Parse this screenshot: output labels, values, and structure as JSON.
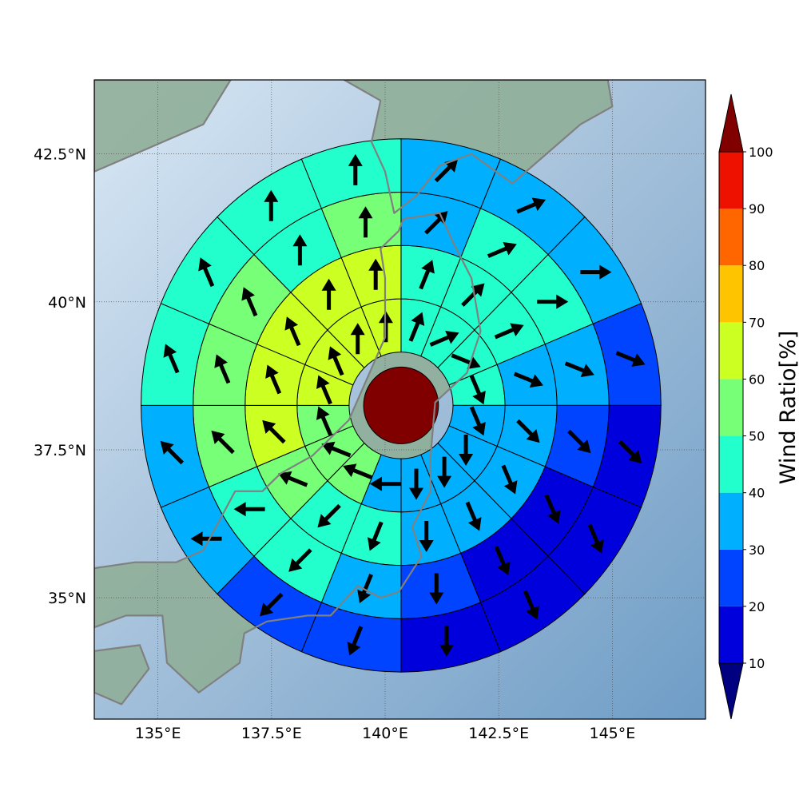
{
  "map": {
    "lon_range": [
      133.6,
      147.05
    ],
    "lat_range": [
      32.95,
      43.75
    ],
    "lon_ticks": [
      {
        "value": 135,
        "label": "135°E"
      },
      {
        "value": 137.5,
        "label": "137.5°E"
      },
      {
        "value": 140,
        "label": "140°E"
      },
      {
        "value": 142.5,
        "label": "142.5°E"
      },
      {
        "value": 145,
        "label": "145°E"
      }
    ],
    "lat_ticks": [
      {
        "value": 35,
        "label": "35°N"
      },
      {
        "value": 37.5,
        "label": "37.5°N"
      },
      {
        "value": 40,
        "label": "40°N"
      },
      {
        "value": 42.5,
        "label": "42.5°N"
      }
    ],
    "center": {
      "lon": 140.35,
      "lat": 38.25
    },
    "ring_radii_km": [
      0,
      100,
      200,
      300,
      400,
      500
    ],
    "sectors": 16,
    "center_value": 100,
    "ocean_color": "#a9c3dc",
    "land_color": "#8fae98",
    "coast_color": "#808080"
  },
  "colorbar": {
    "title": "Wind Ratio[%]",
    "bounds": [
      10,
      20,
      30,
      40,
      50,
      60,
      70,
      80,
      90,
      100
    ],
    "labels": [
      "10",
      "20",
      "30",
      "40",
      "50",
      "60",
      "70",
      "80",
      "90",
      "100"
    ],
    "colors": [
      "#0000dd",
      "#0044ff",
      "#00b0ff",
      "#22ffcc",
      "#77ff77",
      "#ccff22",
      "#ffc400",
      "#ff6600",
      "#ee1100"
    ],
    "under_color": "#000080",
    "over_color": "#800000"
  },
  "chart_data": {
    "type": "heatmap",
    "title": "",
    "colorbar_title": "Wind Ratio[%]",
    "rings_note": "rings ordered inner to outer; sectors clockwise from north, 22.5 degrees each",
    "wind_ratio_percent": [
      [
        45,
        45,
        45,
        45,
        35,
        35,
        35,
        35,
        35,
        55,
        55,
        55,
        65,
        65,
        65,
        65
      ],
      [
        45,
        45,
        45,
        35,
        35,
        35,
        35,
        35,
        45,
        45,
        55,
        65,
        65,
        65,
        65,
        65
      ],
      [
        35,
        45,
        45,
        35,
        25,
        15,
        15,
        25,
        35,
        45,
        45,
        55,
        55,
        55,
        45,
        55
      ],
      [
        35,
        35,
        35,
        25,
        15,
        15,
        15,
        15,
        25,
        25,
        35,
        35,
        45,
        45,
        45,
        45
      ],
      [
        35,
        35,
        25,
        15,
        15,
        15,
        15,
        5,
        15,
        15,
        25,
        15,
        25,
        35,
        45,
        35
      ]
    ],
    "wind_direction_deg": [
      [
        22,
        67,
        112,
        157,
        157,
        180,
        180,
        180,
        270,
        292,
        292,
        337,
        337,
        337,
        0,
        0
      ],
      [
        22,
        45,
        67,
        112,
        135,
        157,
        157,
        180,
        202,
        225,
        292,
        315,
        337,
        337,
        0,
        0
      ],
      [
        45,
        67,
        90,
        112,
        135,
        157,
        157,
        180,
        202,
        225,
        270,
        315,
        337,
        337,
        0,
        0
      ],
      [
        45,
        67,
        90,
        112,
        135,
        157,
        157,
        180,
        202,
        225,
        270,
        315,
        337,
        337,
        0,
        0
      ],
      [
        45,
        67,
        90,
        112,
        135,
        157,
        157,
        180,
        202,
        225,
        292,
        315,
        337,
        337,
        0,
        0
      ]
    ],
    "xlabel": "",
    "ylabel": ""
  }
}
